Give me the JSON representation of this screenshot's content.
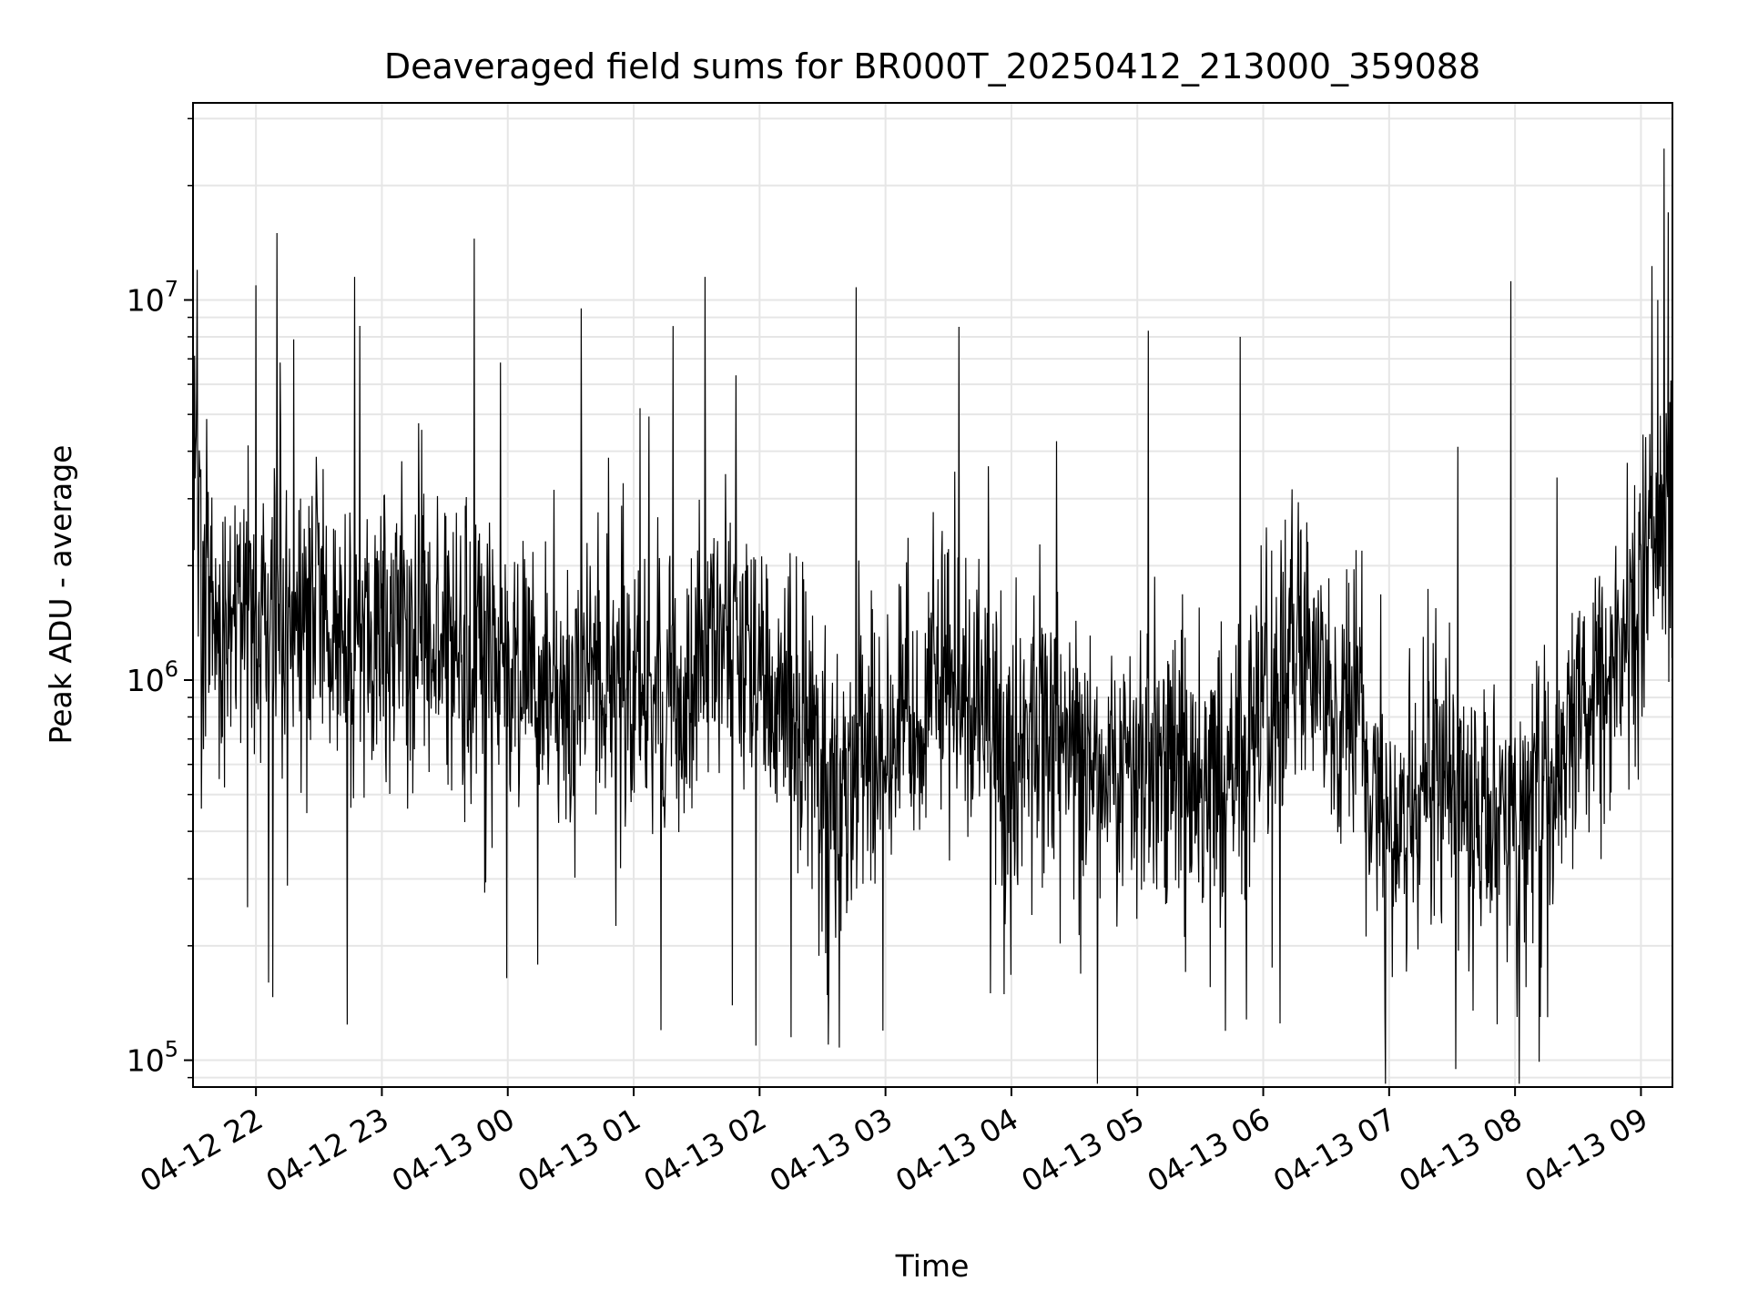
{
  "chart_data": {
    "type": "line",
    "title": "Deaveraged field sums for BR000T_20250412_213000_359088",
    "xlabel": "Time",
    "ylabel": "Peak ADU - average",
    "yscale": "log",
    "ylim": [
      85000,
      33000000
    ],
    "xlim": [
      "2025-04-12 21:30",
      "2025-04-13 09:15"
    ],
    "grid": true,
    "line_color": "#000000",
    "grid_color": "#e6e6e6",
    "x_ticks": [
      {
        "at": "2025-04-12 22:00",
        "label": "04-12 22"
      },
      {
        "at": "2025-04-12 23:00",
        "label": "04-12 23"
      },
      {
        "at": "2025-04-13 00:00",
        "label": "04-13 00"
      },
      {
        "at": "2025-04-13 01:00",
        "label": "04-13 01"
      },
      {
        "at": "2025-04-13 02:00",
        "label": "04-13 02"
      },
      {
        "at": "2025-04-13 03:00",
        "label": "04-13 03"
      },
      {
        "at": "2025-04-13 04:00",
        "label": "04-13 04"
      },
      {
        "at": "2025-04-13 05:00",
        "label": "04-13 05"
      },
      {
        "at": "2025-04-13 06:00",
        "label": "04-13 06"
      },
      {
        "at": "2025-04-13 07:00",
        "label": "04-13 07"
      },
      {
        "at": "2025-04-13 08:00",
        "label": "04-13 08"
      },
      {
        "at": "2025-04-13 09:00",
        "label": "04-13 09"
      }
    ],
    "y_ticks": [
      {
        "value": 100000,
        "base": "10",
        "exp": "5"
      },
      {
        "value": 1000000,
        "base": "10",
        "exp": "6"
      },
      {
        "value": 10000000,
        "base": "10",
        "exp": "7"
      }
    ],
    "series": [
      {
        "points": [
          [
            "2025-04-12 21:30",
            3500000
          ],
          [
            "2025-04-12 21:35",
            2000000
          ],
          [
            "2025-04-12 21:40",
            1500000
          ],
          [
            "2025-04-12 21:45",
            1300000
          ],
          [
            "2025-04-12 21:50",
            1600000
          ],
          [
            "2025-04-12 21:55",
            1400000
          ],
          [
            "2025-04-12 22:00",
            1500000
          ],
          [
            "2025-04-12 22:05",
            1600000
          ],
          [
            "2025-04-12 22:10",
            1700000
          ],
          [
            "2025-04-12 22:15",
            1500000
          ],
          [
            "2025-04-12 22:20",
            1300000
          ],
          [
            "2025-04-12 22:25",
            1200000
          ],
          [
            "2025-04-12 22:30",
            1300000
          ],
          [
            "2025-04-12 22:35",
            1400000
          ],
          [
            "2025-04-12 22:40",
            1300000
          ],
          [
            "2025-04-12 22:45",
            1200000
          ],
          [
            "2025-04-12 22:50",
            1300000
          ],
          [
            "2025-04-12 22:55",
            1300000
          ],
          [
            "2025-04-12 23:00",
            1300000
          ],
          [
            "2025-04-12 23:10",
            1300000
          ],
          [
            "2025-04-12 23:20",
            1400000
          ],
          [
            "2025-04-12 23:30",
            1300000
          ],
          [
            "2025-04-12 23:40",
            1200000
          ],
          [
            "2025-04-12 23:50",
            1100000
          ],
          [
            "2025-04-13 00:00",
            1000000
          ],
          [
            "2025-04-13 00:10",
            950000
          ],
          [
            "2025-04-13 00:20",
            900000
          ],
          [
            "2025-04-13 00:30",
            1000000
          ],
          [
            "2025-04-13 00:40",
            1100000
          ],
          [
            "2025-04-13 00:50",
            1000000
          ],
          [
            "2025-04-13 01:00",
            950000
          ],
          [
            "2025-04-13 01:10",
            900000
          ],
          [
            "2025-04-13 01:20",
            850000
          ],
          [
            "2025-04-13 01:30",
            1100000
          ],
          [
            "2025-04-13 01:40",
            1300000
          ],
          [
            "2025-04-13 01:50",
            1200000
          ],
          [
            "2025-04-13 02:00",
            1000000
          ],
          [
            "2025-04-13 02:10",
            900000
          ],
          [
            "2025-04-13 02:20",
            700000
          ],
          [
            "2025-04-13 02:30",
            600000
          ],
          [
            "2025-04-13 02:40",
            550000
          ],
          [
            "2025-04-13 02:50",
            650000
          ],
          [
            "2025-04-13 03:00",
            700000
          ],
          [
            "2025-04-13 03:10",
            800000
          ],
          [
            "2025-04-13 03:20",
            900000
          ],
          [
            "2025-04-13 03:30",
            1100000
          ],
          [
            "2025-04-13 03:40",
            900000
          ],
          [
            "2025-04-13 03:50",
            750000
          ],
          [
            "2025-04-13 04:00",
            700000
          ],
          [
            "2025-04-13 04:10",
            750000
          ],
          [
            "2025-04-13 04:20",
            800000
          ],
          [
            "2025-04-13 04:30",
            700000
          ],
          [
            "2025-04-13 04:40",
            650000
          ],
          [
            "2025-04-13 04:50",
            600000
          ],
          [
            "2025-04-13 05:00",
            650000
          ],
          [
            "2025-04-13 05:10",
            600000
          ],
          [
            "2025-04-13 05:20",
            550000
          ],
          [
            "2025-04-13 05:30",
            520000
          ],
          [
            "2025-04-13 05:40",
            560000
          ],
          [
            "2025-04-13 05:50",
            700000
          ],
          [
            "2025-04-13 06:00",
            900000
          ],
          [
            "2025-04-13 06:10",
            1100000
          ],
          [
            "2025-04-13 06:20",
            1200000
          ],
          [
            "2025-04-13 06:30",
            1000000
          ],
          [
            "2025-04-13 06:40",
            800000
          ],
          [
            "2025-04-13 06:50",
            600000
          ],
          [
            "2025-04-13 07:00",
            400000
          ],
          [
            "2025-04-13 07:10",
            450000
          ],
          [
            "2025-04-13 07:20",
            600000
          ],
          [
            "2025-04-13 07:30",
            500000
          ],
          [
            "2025-04-13 07:40",
            450000
          ],
          [
            "2025-04-13 07:50",
            420000
          ],
          [
            "2025-04-13 08:00",
            450000
          ],
          [
            "2025-04-13 08:10",
            500000
          ],
          [
            "2025-04-13 08:20",
            600000
          ],
          [
            "2025-04-13 08:30",
            800000
          ],
          [
            "2025-04-13 08:40",
            1000000
          ],
          [
            "2025-04-13 08:50",
            1200000
          ],
          [
            "2025-04-13 09:00",
            1500000
          ],
          [
            "2025-04-13 09:05",
            2000000
          ],
          [
            "2025-04-13 09:10",
            3000000
          ],
          [
            "2025-04-13 09:15",
            2500000
          ]
        ]
      }
    ],
    "peaks": [
      [
        "2025-04-12 21:32",
        12000000
      ],
      [
        "2025-04-12 22:10",
        15000000
      ],
      [
        "2025-04-12 22:47",
        11500000
      ],
      [
        "2025-04-12 23:44",
        14500000
      ],
      [
        "2025-04-13 00:35",
        9500000
      ],
      [
        "2025-04-13 01:34",
        11500000
      ],
      [
        "2025-04-13 02:46",
        10800000
      ],
      [
        "2025-04-13 03:35",
        8500000
      ],
      [
        "2025-04-13 05:49",
        8000000
      ],
      [
        "2025-04-13 07:58",
        11200000
      ],
      [
        "2025-04-13 09:08",
        10000000
      ],
      [
        "2025-04-13 09:11",
        25000000
      ],
      [
        "2025-04-13 09:13",
        17000000
      ]
    ],
    "troughs": [
      [
        "2025-04-12 22:06",
        160000
      ],
      [
        "2025-04-13 01:13",
        120000
      ],
      [
        "2025-04-13 02:15",
        115000
      ],
      [
        "2025-04-13 02:38",
        108000
      ],
      [
        "2025-04-13 03:50",
        150000
      ],
      [
        "2025-04-13 06:08",
        125000
      ],
      [
        "2025-04-13 06:58",
        135000
      ],
      [
        "2025-04-13 07:40",
        135000
      ],
      [
        "2025-04-13 08:01",
        130000
      ],
      [
        "2025-04-13 08:12",
        130000
      ]
    ],
    "noise": {
      "samples_per_minute": 4,
      "log10_spread": 0.35,
      "spike_rate": 0.015,
      "dip_rate": 0.012
    }
  }
}
